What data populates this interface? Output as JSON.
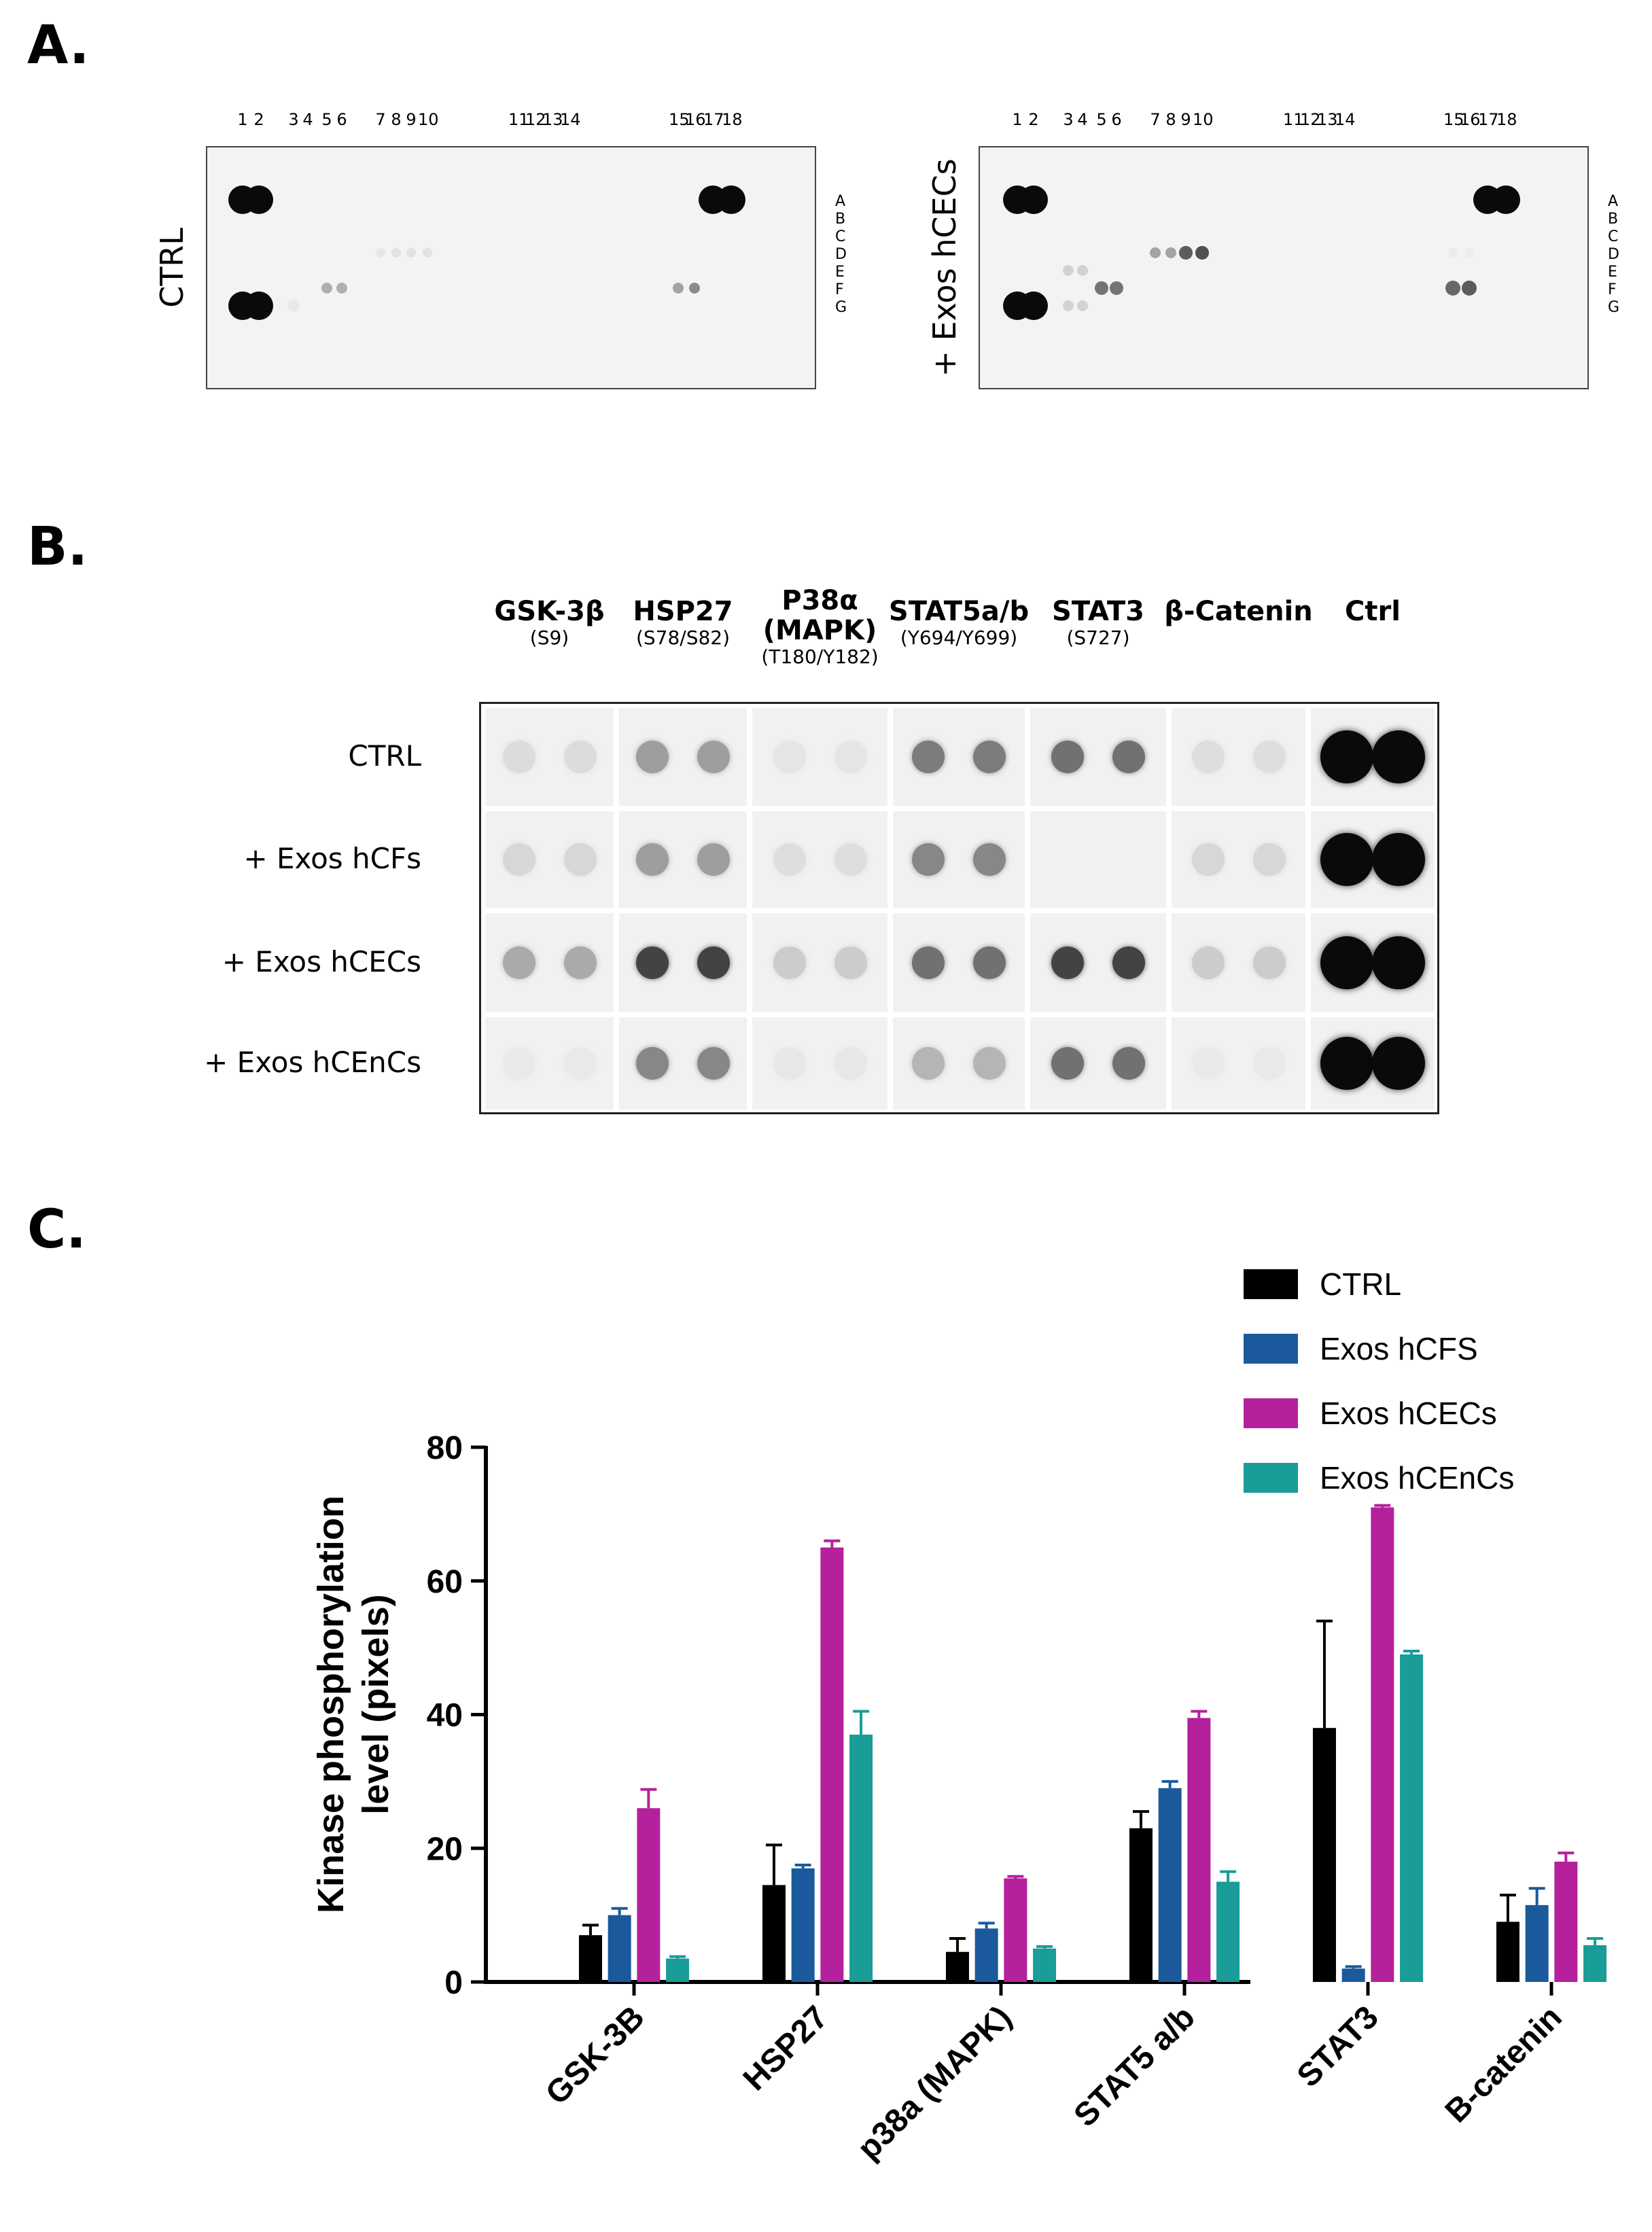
{
  "panels": {
    "a": {
      "letter": "A.",
      "lane_numbers": [
        "1",
        "2",
        "3",
        "4",
        "5",
        "6",
        "7",
        "8",
        "9",
        "10",
        "11",
        "12",
        "13",
        "14",
        "15",
        "16",
        "17",
        "18"
      ],
      "row_letters": [
        "A",
        "B",
        "C",
        "D",
        "E",
        "F",
        "G"
      ],
      "blots": [
        {
          "label": "CTRL"
        },
        {
          "label": "+ Exos hCECs"
        }
      ]
    },
    "b": {
      "letter": "B.",
      "columns": [
        {
          "name": "GSK-3β",
          "site": "(S9)"
        },
        {
          "name": "HSP27",
          "site": "(S78/S82)"
        },
        {
          "name": "P38α (MAPK)",
          "site": "(T180/Y182)"
        },
        {
          "name": "STAT5a/b",
          "site": "(Y694/Y699)"
        },
        {
          "name": "STAT3",
          "site": "(S727)"
        },
        {
          "name": "β-Catenin",
          "site": ""
        },
        {
          "name": "Ctrl",
          "site": ""
        }
      ],
      "rows": [
        "CTRL",
        "+ Exos hCFs",
        "+ Exos hCECs",
        "+ Exos hCEnCs"
      ],
      "intensity": [
        [
          0.08,
          0.35,
          0.04,
          0.5,
          0.55,
          0.07,
          1.0
        ],
        [
          0.1,
          0.35,
          0.07,
          0.45,
          0.0,
          0.1,
          1.0
        ],
        [
          0.3,
          0.75,
          0.15,
          0.55,
          0.75,
          0.15,
          1.0
        ],
        [
          0.02,
          0.45,
          0.03,
          0.25,
          0.55,
          0.02,
          1.0
        ]
      ]
    },
    "c": {
      "letter": "C."
    }
  },
  "chart_data": {
    "type": "bar",
    "title": "",
    "xlabel": "",
    "ylabel": "Kinase phosphorylation level (pixels)",
    "ylim": [
      0,
      80
    ],
    "yticks": [
      "0",
      "20",
      "40",
      "60",
      "80"
    ],
    "categories": [
      "GSK-3B",
      "HSP27",
      "p38a (MAPK)",
      "STAT5 a/b",
      "STAT3",
      "B-catenin"
    ],
    "legend_position": "top-right",
    "series": [
      {
        "name": "CTRL",
        "color": "#000000",
        "values": [
          7,
          14.5,
          4.5,
          23,
          38,
          9
        ],
        "errors": [
          1.5,
          6,
          2,
          2.5,
          16,
          4
        ]
      },
      {
        "name": "Exos hCFS",
        "color": "#1a5a9c",
        "values": [
          10,
          17,
          8,
          29,
          2,
          11.5
        ],
        "errors": [
          1,
          0.5,
          0.8,
          1,
          0.3,
          2.5
        ]
      },
      {
        "name": "Exos hCECs",
        "color": "#b5219c",
        "values": [
          26,
          65,
          15.5,
          39.5,
          71,
          18
        ],
        "errors": [
          2.8,
          1,
          0.3,
          1,
          0.3,
          1.3
        ]
      },
      {
        "name": "Exos hCEnCs",
        "color": "#1a9c98",
        "values": [
          3.5,
          37,
          5,
          15,
          49,
          5.5
        ],
        "errors": [
          0.3,
          3.5,
          0.3,
          1.5,
          0.5,
          1
        ]
      }
    ]
  }
}
